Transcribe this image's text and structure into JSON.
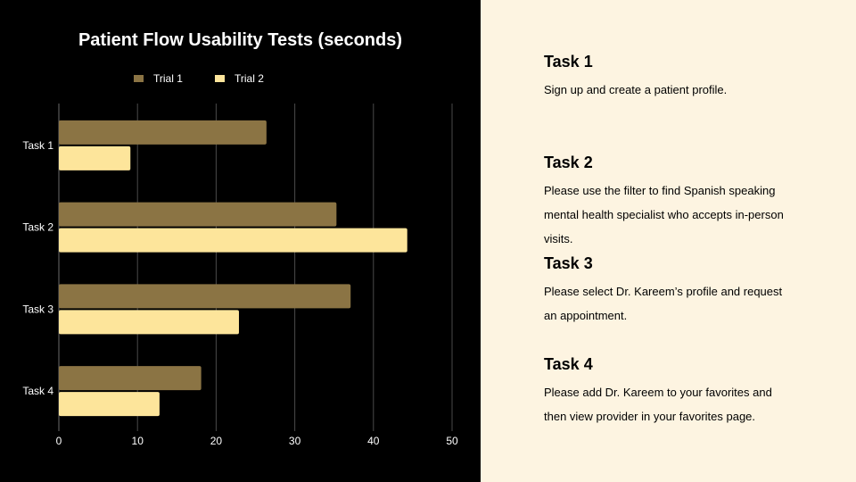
{
  "chart_data": {
    "type": "bar",
    "orientation": "horizontal",
    "title": "Patient Flow Usability Tests (seconds)",
    "categories": [
      "Task 1",
      "Task 2",
      "Task 3",
      "Task 4"
    ],
    "series": [
      {
        "name": "Trial 1",
        "color": "#8b7444",
        "values": [
          26.4,
          35.3,
          37.1,
          18.1
        ]
      },
      {
        "name": "Trial 2",
        "color": "#fde59b",
        "values": [
          9.1,
          44.3,
          22.9,
          12.8
        ]
      }
    ],
    "xlim": [
      0,
      50
    ],
    "xticks": [
      "0",
      "10",
      "20",
      "30",
      "40",
      "50"
    ],
    "grid": true,
    "legend": "top"
  },
  "tasks": [
    {
      "title": "Task 1",
      "lines": [
        "Sign up and create a patient profile."
      ]
    },
    {
      "title": "Task 2",
      "lines": [
        "Please use the filter to find Spanish speaking",
        "mental health specialist who accepts in-person",
        "visits."
      ]
    },
    {
      "title": "Task 3",
      "lines": [
        "Please select Dr. Kareem’s profile and request",
        "an appointment."
      ]
    },
    {
      "title": "Task 4",
      "lines": [
        "Please add Dr. Kareem to your favorites and",
        "then view provider in your favorites page."
      ]
    }
  ]
}
